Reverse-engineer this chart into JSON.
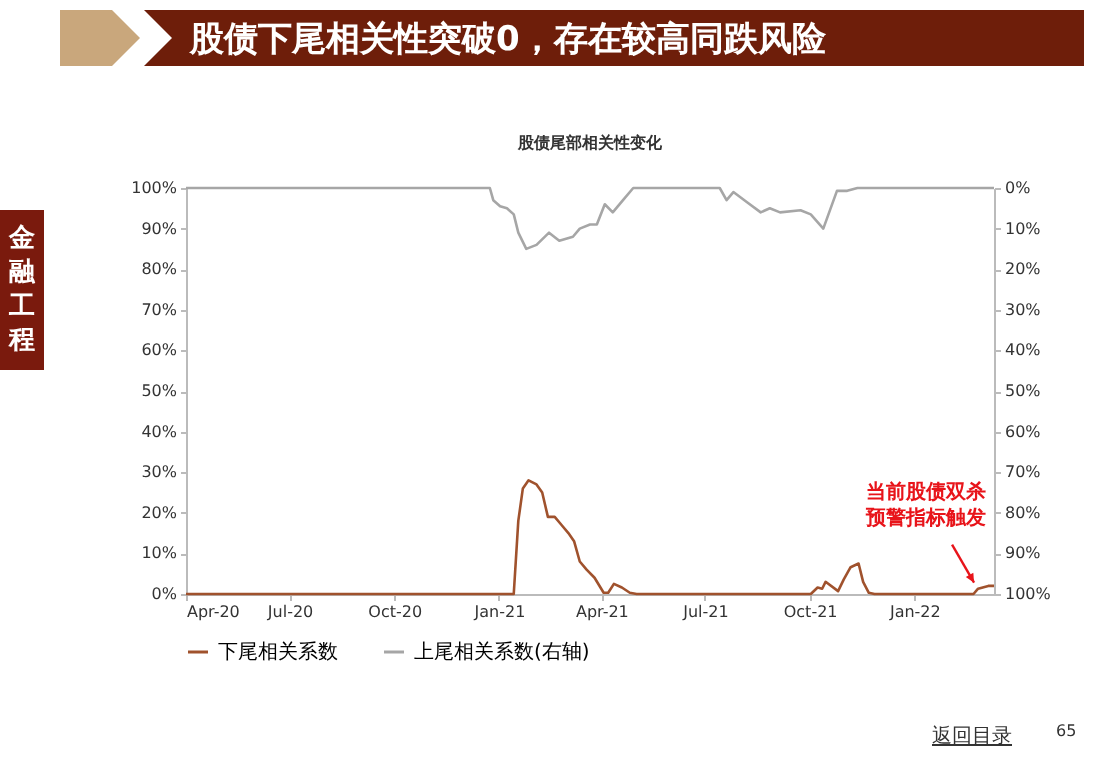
{
  "chart_data": {
    "type": "line",
    "title": "股债下尾相关性突破0，存在较高同跌风险",
    "subtitle": "股债尾部相关性变化",
    "xlim": [
      "2020-04-01",
      "2022-03-12"
    ],
    "xticks": [
      {
        "value": "2020-04-01",
        "label": "Apr-20"
      },
      {
        "value": "2020-07-01",
        "label": "Jul-20"
      },
      {
        "value": "2020-10-01",
        "label": "Oct-20"
      },
      {
        "value": "2021-01-01",
        "label": "Jan-21"
      },
      {
        "value": "2021-04-01",
        "label": "Apr-21"
      },
      {
        "value": "2021-07-01",
        "label": "Jul-21"
      },
      {
        "value": "2021-10-01",
        "label": "Oct-21"
      },
      {
        "value": "2022-01-01",
        "label": "Jan-22"
      }
    ],
    "ylim": [
      0,
      100
    ],
    "yticks": [
      {
        "value": 0,
        "label": "0%"
      },
      {
        "value": 10,
        "label": "10%"
      },
      {
        "value": 20,
        "label": "20%"
      },
      {
        "value": 30,
        "label": "30%"
      },
      {
        "value": 40,
        "label": "40%"
      },
      {
        "value": 50,
        "label": "50%"
      },
      {
        "value": 60,
        "label": "60%"
      },
      {
        "value": 70,
        "label": "70%"
      },
      {
        "value": 80,
        "label": "80%"
      },
      {
        "value": 90,
        "label": "90%"
      },
      {
        "value": 100,
        "label": "100%"
      }
    ],
    "y2lim": [
      100,
      0
    ],
    "y2ticks": [
      {
        "value": 0,
        "label": "0%"
      },
      {
        "value": 10,
        "label": "10%"
      },
      {
        "value": 20,
        "label": "20%"
      },
      {
        "value": 30,
        "label": "30%"
      },
      {
        "value": 40,
        "label": "40%"
      },
      {
        "value": 50,
        "label": "50%"
      },
      {
        "value": 60,
        "label": "60%"
      },
      {
        "value": 70,
        "label": "70%"
      },
      {
        "value": 80,
        "label": "80%"
      },
      {
        "value": 90,
        "label": "90%"
      },
      {
        "value": 100,
        "label": "100%"
      }
    ],
    "legend": "bottom",
    "series": [
      {
        "name": "下尾相关系数",
        "color": "#a0522d",
        "x": [
          "2020-04-01",
          "2021-01-14",
          "2021-01-18",
          "2021-01-22",
          "2021-01-27",
          "2021-02-03",
          "2021-02-08",
          "2021-02-13",
          "2021-02-19",
          "2021-02-25",
          "2021-03-03",
          "2021-03-08",
          "2021-03-13",
          "2021-03-19",
          "2021-03-26",
          "2021-04-03",
          "2021-04-07",
          "2021-04-12",
          "2021-04-19",
          "2021-04-26",
          "2021-05-02",
          "2021-10-02",
          "2021-10-08",
          "2021-10-12",
          "2021-10-15",
          "2021-10-26",
          "2021-10-31",
          "2021-11-06",
          "2021-11-13",
          "2021-11-17",
          "2021-11-22",
          "2021-11-27",
          "2022-02-22",
          "2022-02-26",
          "2022-03-07",
          "2022-03-12"
        ],
        "values": [
          0,
          0,
          18,
          26,
          28,
          27,
          25,
          19,
          19,
          17,
          15,
          13,
          8,
          6,
          4,
          0.3,
          0.3,
          2.5,
          1.6,
          0.3,
          0,
          0,
          1.6,
          1.3,
          3,
          0.7,
          3.6,
          6.6,
          7.5,
          3,
          0.3,
          0,
          0,
          1.3,
          2,
          2
        ]
      },
      {
        "name": "上尾相关系数(右轴)",
        "color": "#a6a6a6",
        "axis": "y2",
        "x": [
          "2020-04-01",
          "2020-12-24",
          "2020-12-27",
          "2021-01-02",
          "2021-01-08",
          "2021-01-14",
          "2021-01-18",
          "2021-01-25",
          "2021-02-03",
          "2021-02-14",
          "2021-02-23",
          "2021-03-07",
          "2021-03-13",
          "2021-03-22",
          "2021-03-28",
          "2021-04-04",
          "2021-04-11",
          "2021-04-20",
          "2021-04-29",
          "2021-07-14",
          "2021-07-20",
          "2021-07-26",
          "2021-08-07",
          "2021-08-19",
          "2021-08-27",
          "2021-09-05",
          "2021-09-23",
          "2021-10-02",
          "2021-10-13",
          "2021-10-25",
          "2021-11-03",
          "2021-11-12",
          "2022-03-12"
        ],
        "values": [
          0,
          0,
          3,
          4.5,
          5,
          6.5,
          11,
          15,
          14,
          11,
          13,
          12,
          10,
          9,
          9,
          4,
          6,
          3,
          0,
          0,
          3,
          1,
          3.5,
          6,
          5,
          6,
          5.5,
          6.5,
          10,
          0.7,
          0.7,
          0,
          0
        ]
      }
    ],
    "annotations": [
      {
        "text": "当前股债双杀预警指标触发",
        "x": "2022-02-26",
        "y": 1.3
      },
      "金融工程",
      "返回目录",
      "65"
    ]
  }
}
